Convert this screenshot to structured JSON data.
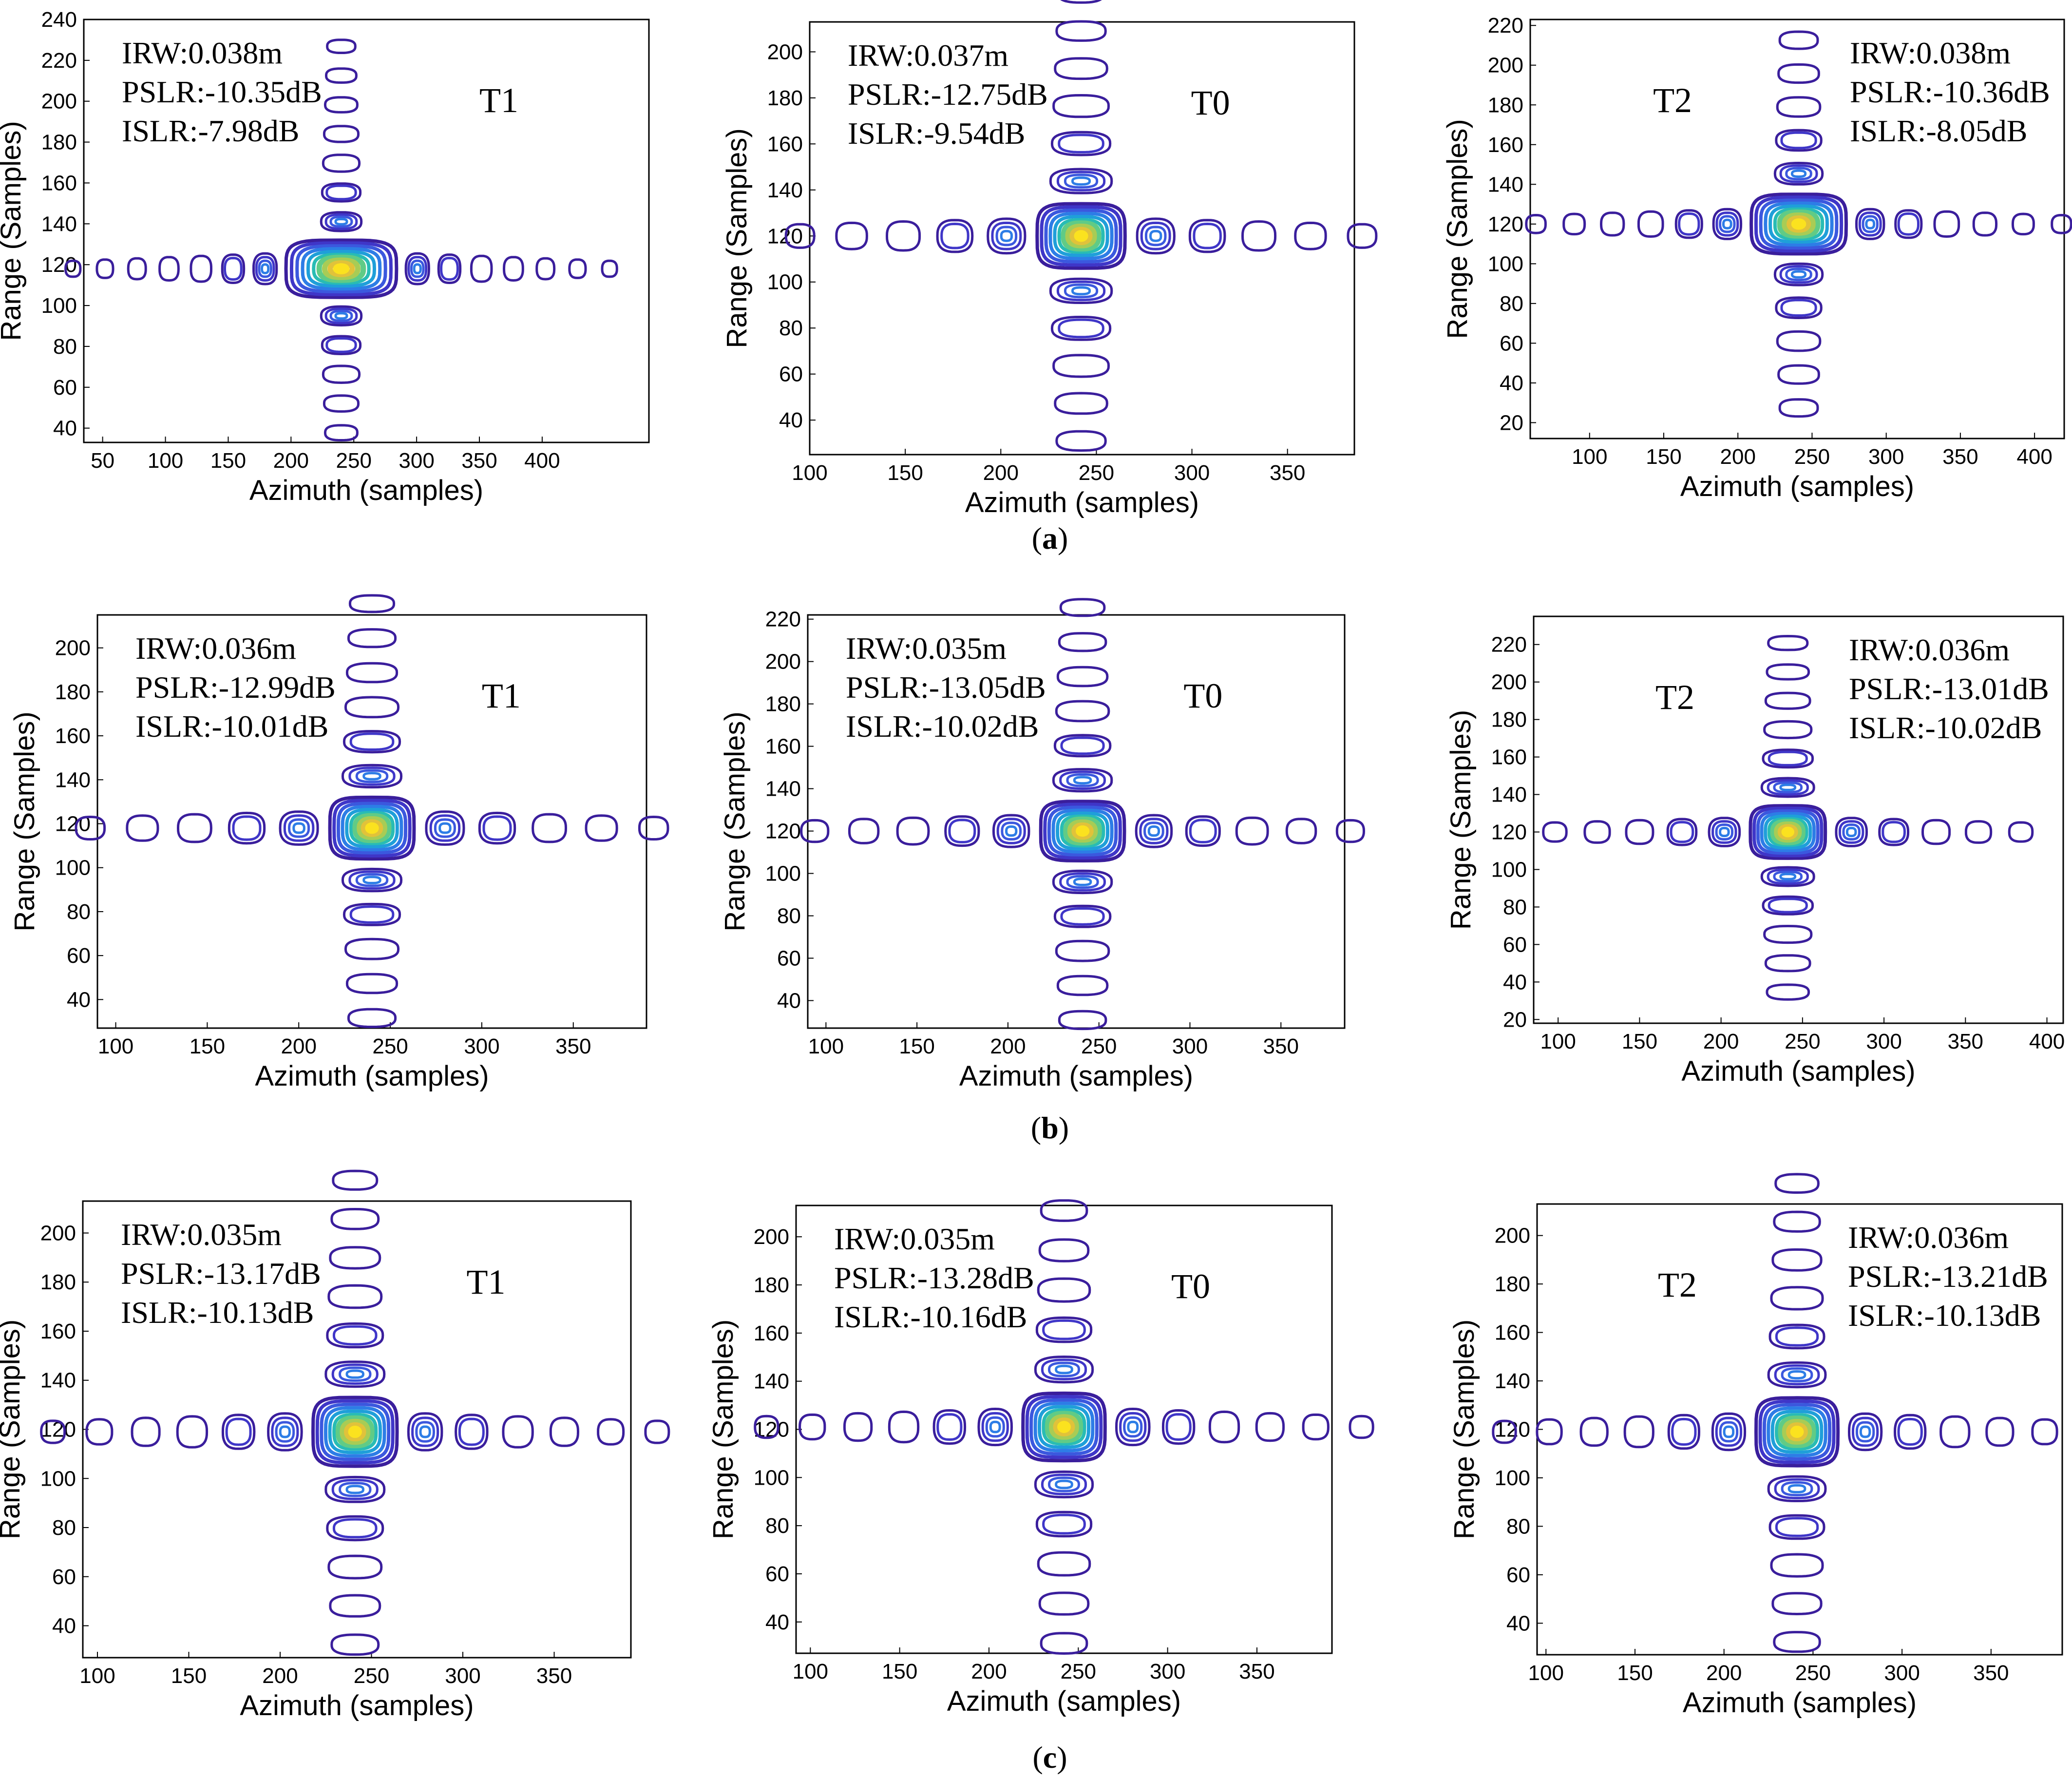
{
  "row_captions": [
    "a",
    "b",
    "c"
  ],
  "colors": {
    "levels": [
      "#3a1e9c",
      "#3f36c8",
      "#3b58de",
      "#2d7de6",
      "#1f9fd9",
      "#28bcb4",
      "#60cb86",
      "#a8cc55",
      "#e1c23a",
      "#fbe21f"
    ],
    "axis": "#000000",
    "text": "#000000"
  },
  "chart_data": [
    {
      "id": "a-T1",
      "type": "contour",
      "row": 0,
      "col": 0,
      "target": "T1",
      "xlabel": "Azimuth (samples)",
      "ylabel": "Range (Samples)",
      "xlim": [
        35,
        485
      ],
      "ylim": [
        33,
        240
      ],
      "xticks": [
        50,
        100,
        150,
        200,
        250,
        300,
        350,
        400
      ],
      "yticks": [
        40,
        60,
        80,
        100,
        120,
        140,
        160,
        180,
        200,
        220,
        240
      ],
      "center": [
        240,
        118
      ],
      "az_lobe_spacing": 25.5,
      "az_lobes": 7,
      "rg_lobe_spacing": 14.3,
      "rg_lobes_down": 5,
      "rg_lobes_up": 7,
      "main_w": 44,
      "main_h": 14,
      "metrics": [
        "IRW:0.038m",
        "PSLR:-10.35dB",
        "ISLR:-7.98dB"
      ],
      "label_side": "left"
    },
    {
      "id": "a-T0",
      "type": "contour",
      "row": 0,
      "col": 1,
      "target": "T0",
      "xlabel": "Azimuth (samples)",
      "ylabel": "Range (Samples)",
      "xlim": [
        100,
        385
      ],
      "ylim": [
        25,
        213
      ],
      "xticks": [
        100,
        150,
        200,
        250,
        300,
        350
      ],
      "yticks": [
        40,
        60,
        80,
        100,
        120,
        140,
        160,
        180,
        200
      ],
      "center": [
        242,
        120
      ],
      "az_lobe_spacing": 27,
      "az_lobes": 5,
      "rg_lobe_spacing": 16.3,
      "rg_lobes_down": 5,
      "rg_lobes_up": 6,
      "main_w": 23,
      "main_h": 14,
      "metrics": [
        "IRW:0.037m",
        "PSLR:-12.75dB",
        "ISLR:-9.54dB"
      ],
      "label_side": "left"
    },
    {
      "id": "a-T2",
      "type": "contour",
      "row": 0,
      "col": 2,
      "target": "T2",
      "xlabel": "Azimuth (samples)",
      "ylabel": "Range (Samples)",
      "xlim": [
        60,
        420
      ],
      "ylim": [
        12,
        223
      ],
      "xticks": [
        100,
        150,
        200,
        250,
        300,
        350,
        400
      ],
      "yticks": [
        20,
        40,
        60,
        80,
        100,
        120,
        140,
        160,
        180,
        200,
        220
      ],
      "center": [
        241,
        120
      ],
      "az_lobe_spacing": 25.8,
      "az_lobes": 6,
      "rg_lobe_spacing": 16.8,
      "rg_lobes_down": 5,
      "rg_lobes_up": 5,
      "main_w": 32,
      "main_h": 15,
      "metrics": [
        "IRW:0.038m",
        "PSLR:-10.36dB",
        "ISLR:-8.05dB"
      ],
      "label_side": "right"
    },
    {
      "id": "b-T1",
      "type": "contour",
      "row": 1,
      "col": 0,
      "target": "T1",
      "xlabel": "Azimuth (samples)",
      "ylabel": "Range (Samples)",
      "xlim": [
        90,
        390
      ],
      "ylim": [
        27,
        215
      ],
      "xticks": [
        100,
        150,
        200,
        250,
        300,
        350
      ],
      "yticks": [
        40,
        60,
        80,
        100,
        120,
        140,
        160,
        180,
        200
      ],
      "center": [
        240,
        118
      ],
      "az_lobe_spacing": 28.5,
      "az_lobes": 5,
      "rg_lobe_spacing": 15.7,
      "rg_lobes_down": 5,
      "rg_lobes_up": 6,
      "main_w": 23,
      "main_h": 14,
      "metrics": [
        "IRW:0.036m",
        "PSLR:-12.99dB",
        "ISLR:-10.01dB"
      ],
      "label_side": "left"
    },
    {
      "id": "b-T0",
      "type": "contour",
      "row": 1,
      "col": 1,
      "target": "T0",
      "xlabel": "Azimuth (samples)",
      "ylabel": "Range (Samples)",
      "xlim": [
        90,
        385
      ],
      "ylim": [
        27,
        222
      ],
      "xticks": [
        100,
        150,
        200,
        250,
        300,
        350
      ],
      "yticks": [
        40,
        60,
        80,
        100,
        120,
        140,
        160,
        180,
        200,
        220
      ],
      "center": [
        241,
        120
      ],
      "az_lobe_spacing": 27,
      "az_lobes": 5,
      "rg_lobe_spacing": 16.3,
      "rg_lobes_down": 5,
      "rg_lobes_up": 6,
      "main_w": 23,
      "main_h": 14,
      "metrics": [
        "IRW:0.035m",
        "PSLR:-13.05dB",
        "ISLR:-10.02dB"
      ],
      "label_side": "left"
    },
    {
      "id": "b-T2",
      "type": "contour",
      "row": 1,
      "col": 2,
      "target": "T2",
      "xlabel": "Azimuth (samples)",
      "ylabel": "Range (Samples)",
      "xlim": [
        85,
        410
      ],
      "ylim": [
        18,
        235
      ],
      "xticks": [
        100,
        150,
        200,
        250,
        300,
        350,
        400
      ],
      "yticks": [
        20,
        40,
        60,
        80,
        100,
        120,
        140,
        160,
        180,
        200,
        220
      ],
      "center": [
        241,
        120
      ],
      "az_lobe_spacing": 26,
      "az_lobes": 5,
      "rg_lobe_spacing": 15.4,
      "rg_lobes_down": 5,
      "rg_lobes_up": 6,
      "main_w": 23,
      "main_h": 14,
      "metrics": [
        "IRW:0.036m",
        "PSLR:-13.01dB",
        "ISLR:-10.02dB"
      ],
      "label_side": "right"
    },
    {
      "id": "c-T1",
      "type": "contour",
      "row": 2,
      "col": 0,
      "target": "T1",
      "xlabel": "Azimuth (samples)",
      "ylabel": "Range (Samples)",
      "xlim": [
        92,
        392
      ],
      "ylim": [
        27,
        213
      ],
      "xticks": [
        100,
        150,
        200,
        250,
        300,
        350
      ],
      "yticks": [
        40,
        60,
        80,
        100,
        120,
        140,
        160,
        180,
        200
      ],
      "center": [
        241,
        119
      ],
      "az_lobe_spacing": 25.4,
      "az_lobes": 6,
      "rg_lobe_spacing": 15.8,
      "rg_lobes_down": 5,
      "rg_lobes_up": 6,
      "main_w": 23,
      "main_h": 14,
      "metrics": [
        "IRW:0.035m",
        "PSLR:-13.17dB",
        "ISLR:-10.13dB"
      ],
      "label_side": "left"
    },
    {
      "id": "c-T0",
      "type": "contour",
      "row": 2,
      "col": 1,
      "target": "T0",
      "xlabel": "Azimuth (samples)",
      "ylabel": "Range (Samples)",
      "xlim": [
        92,
        392
      ],
      "ylim": [
        27,
        213
      ],
      "xticks": [
        100,
        150,
        200,
        250,
        300,
        350
      ],
      "yticks": [
        40,
        60,
        80,
        100,
        120,
        140,
        160,
        180,
        200
      ],
      "center": [
        242,
        121
      ],
      "az_lobe_spacing": 25.6,
      "az_lobes": 6,
      "rg_lobe_spacing": 16.5,
      "rg_lobes_down": 5,
      "rg_lobes_up": 5,
      "main_w": 23,
      "main_h": 14,
      "metrics": [
        "IRW:0.035m",
        "PSLR:-13.28dB",
        "ISLR:-10.16dB"
      ],
      "label_side": "left"
    },
    {
      "id": "c-T2",
      "type": "contour",
      "row": 2,
      "col": 2,
      "target": "T2",
      "xlabel": "Azimuth (samples)",
      "ylabel": "Range (Samples)",
      "xlim": [
        95,
        390
      ],
      "ylim": [
        27,
        213
      ],
      "xticks": [
        100,
        150,
        200,
        250,
        300,
        350
      ],
      "yticks": [
        40,
        60,
        80,
        100,
        120,
        140,
        160,
        180,
        200
      ],
      "center": [
        241,
        119
      ],
      "az_lobe_spacing": 25.2,
      "az_lobes": 6,
      "rg_lobe_spacing": 15.8,
      "rg_lobes_down": 5,
      "rg_lobes_up": 6,
      "main_w": 23,
      "main_h": 14,
      "metrics": [
        "IRW:0.036m",
        "PSLR:-13.21dB",
        "ISLR:-10.13dB"
      ],
      "label_side": "right"
    }
  ]
}
